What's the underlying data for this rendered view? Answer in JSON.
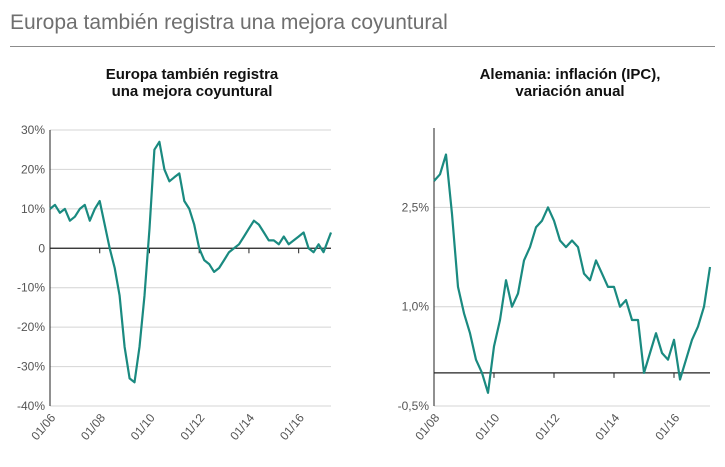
{
  "header": {
    "title": "Europa también registra una mejora coyuntural"
  },
  "colors": {
    "line": "#1a8a80",
    "grid": "#d4d4d4",
    "axis": "#222222",
    "text": "#555555"
  },
  "chart_data": [
    {
      "type": "line",
      "title_lines": [
        "Europa también registra",
        "una mejora coyuntural"
      ],
      "xlabel": "",
      "ylabel": "",
      "x_range": [
        2006.0,
        2017.3
      ],
      "ylim": [
        -40,
        30
      ],
      "y_ticks": [
        30,
        20,
        10,
        0,
        -10,
        -20,
        -30,
        -40
      ],
      "y_tick_labels": [
        "30%",
        "20%",
        "10%",
        "0",
        "-10%",
        "-20%",
        "-30%",
        "-40%"
      ],
      "x_ticks": [
        2006.0,
        2008.0,
        2010.0,
        2012.0,
        2014.0,
        2016.0
      ],
      "x_tick_labels": [
        "01/06",
        "01/08",
        "01/10",
        "01/12",
        "01/14",
        "01/16"
      ],
      "grid": true,
      "series": [
        {
          "x": [
            2006.0,
            2006.2,
            2006.4,
            2006.6,
            2006.8,
            2007.0,
            2007.2,
            2007.4,
            2007.6,
            2007.8,
            2008.0,
            2008.2,
            2008.4,
            2008.6,
            2008.8,
            2009.0,
            2009.2,
            2009.4,
            2009.6,
            2009.8,
            2010.0,
            2010.2,
            2010.4,
            2010.6,
            2010.8,
            2011.0,
            2011.2,
            2011.4,
            2011.6,
            2011.8,
            2012.0,
            2012.2,
            2012.4,
            2012.6,
            2012.8,
            2013.0,
            2013.2,
            2013.4,
            2013.6,
            2013.8,
            2014.0,
            2014.2,
            2014.4,
            2014.6,
            2014.8,
            2015.0,
            2015.2,
            2015.4,
            2015.6,
            2015.8,
            2016.0,
            2016.2,
            2016.4,
            2016.6,
            2016.8,
            2017.0,
            2017.3
          ],
          "y": [
            10,
            11,
            9,
            10,
            7,
            8,
            10,
            11,
            7,
            10,
            12,
            6,
            0,
            -5,
            -12,
            -25,
            -33,
            -34,
            -25,
            -12,
            5,
            25,
            27,
            20,
            17,
            18,
            19,
            12,
            10,
            6,
            0,
            -3,
            -4,
            -6,
            -5,
            -3,
            -1,
            0,
            1,
            3,
            5,
            7,
            6,
            4,
            2,
            2,
            1,
            3,
            1,
            2,
            3,
            4,
            0,
            -1,
            1,
            -1,
            4
          ]
        }
      ]
    },
    {
      "type": "line",
      "title_lines": [
        "Alemania: inflación (IPC),",
        "variación anual"
      ],
      "xlabel": "",
      "ylabel": "",
      "x_range": [
        2008.0,
        2017.2
      ],
      "ylim": [
        -0.5,
        3.7
      ],
      "y_ticks": [
        2.5,
        1.0,
        -0.5
      ],
      "y_tick_labels": [
        "2,5%",
        "1,0%",
        "-0,5%"
      ],
      "x_ticks": [
        2008.0,
        2010.0,
        2012.0,
        2014.0,
        2016.0
      ],
      "x_tick_labels": [
        "01/08",
        "01/10",
        "01/12",
        "01/14",
        "01/16"
      ],
      "grid": true,
      "series": [
        {
          "x": [
            2008.0,
            2008.2,
            2008.4,
            2008.6,
            2008.8,
            2009.0,
            2009.2,
            2009.4,
            2009.6,
            2009.8,
            2010.0,
            2010.2,
            2010.4,
            2010.6,
            2010.8,
            2011.0,
            2011.2,
            2011.4,
            2011.6,
            2011.8,
            2012.0,
            2012.2,
            2012.4,
            2012.6,
            2012.8,
            2013.0,
            2013.2,
            2013.4,
            2013.6,
            2013.8,
            2014.0,
            2014.2,
            2014.4,
            2014.6,
            2014.8,
            2015.0,
            2015.2,
            2015.4,
            2015.6,
            2015.8,
            2016.0,
            2016.2,
            2016.4,
            2016.6,
            2016.8,
            2017.0,
            2017.2
          ],
          "y": [
            2.9,
            3.0,
            3.3,
            2.4,
            1.3,
            0.9,
            0.6,
            0.2,
            0.0,
            -0.3,
            0.4,
            0.8,
            1.4,
            1.0,
            1.2,
            1.7,
            1.9,
            2.2,
            2.3,
            2.5,
            2.3,
            2.0,
            1.9,
            2.0,
            1.9,
            1.5,
            1.4,
            1.7,
            1.5,
            1.3,
            1.3,
            1.0,
            1.1,
            0.8,
            0.8,
            0.0,
            0.3,
            0.6,
            0.3,
            0.2,
            0.5,
            -0.1,
            0.2,
            0.5,
            0.7,
            1.0,
            1.6
          ]
        }
      ]
    }
  ]
}
